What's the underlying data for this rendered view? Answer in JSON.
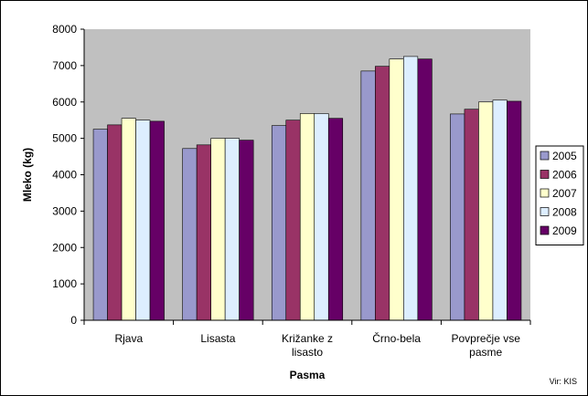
{
  "chart_data": {
    "type": "bar",
    "title": "",
    "xlabel": "Pasma",
    "ylabel": "Mleko (kg)",
    "ylim": [
      0,
      8000
    ],
    "yticks": [
      0,
      1000,
      2000,
      3000,
      4000,
      5000,
      6000,
      7000,
      8000
    ],
    "grid": false,
    "legend_position": "right",
    "categories": [
      [
        "Rjava"
      ],
      [
        "Lisasta"
      ],
      [
        "Križanke z",
        "lisasto"
      ],
      [
        "Črno-bela"
      ],
      [
        "Povprečje vse",
        "pasme"
      ]
    ],
    "series": [
      {
        "name": "2005",
        "color": "#9999cc",
        "values": [
          5250,
          4720,
          5350,
          6850,
          5670
        ]
      },
      {
        "name": "2006",
        "color": "#993366",
        "values": [
          5370,
          4820,
          5500,
          6980,
          5800
        ]
      },
      {
        "name": "2007",
        "color": "#ffffcc",
        "values": [
          5550,
          5000,
          5680,
          7180,
          6000
        ]
      },
      {
        "name": "2008",
        "color": "#ddeeff",
        "values": [
          5500,
          5000,
          5680,
          7250,
          6050
        ]
      },
      {
        "name": "2009",
        "color": "#660066",
        "values": [
          5470,
          4950,
          5550,
          7180,
          6020
        ]
      }
    ],
    "plot_background": "#c0c0c0",
    "source": "Vir: KIS"
  }
}
